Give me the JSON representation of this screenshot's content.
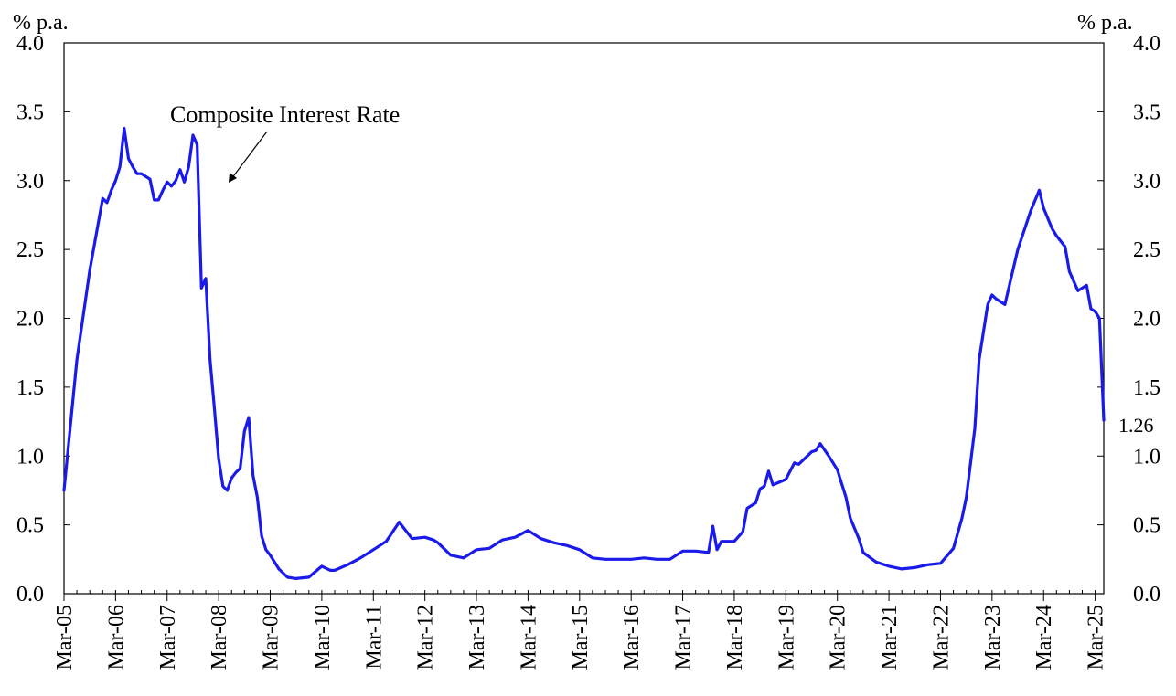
{
  "chart_data": {
    "type": "line",
    "title": "",
    "unit_left": "% p.a.",
    "unit_right": "% p.a.",
    "ylim": [
      0,
      4
    ],
    "yticks": [
      "0.0",
      "0.5",
      "1.0",
      "1.5",
      "2.0",
      "2.5",
      "3.0",
      "3.5",
      "4.0"
    ],
    "xticks": [
      "Mar-05",
      "Mar-06",
      "Mar-07",
      "Mar-08",
      "Mar-09",
      "Mar-10",
      "Mar-11",
      "Mar-12",
      "Mar-13",
      "Mar-14",
      "Mar-15",
      "Mar-16",
      "Mar-17",
      "Mar-18",
      "Mar-19",
      "Mar-20",
      "Mar-21",
      "Mar-22",
      "Mar-23",
      "Mar-24",
      "Mar-25"
    ],
    "grid": false,
    "annotation": "Composite Interest Rate",
    "last_value_label": "1.26",
    "line_color": "#1a1aeb",
    "series": [
      {
        "x": [
          "2005-03",
          "2005-06",
          "2005-09",
          "2005-12",
          "2006-01",
          "2006-02",
          "2006-03",
          "2006-04",
          "2006-05",
          "2006-06",
          "2006-07",
          "2006-08",
          "2006-09",
          "2006-10",
          "2006-11",
          "2006-12",
          "2007-01",
          "2007-02",
          "2007-03",
          "2007-04",
          "2007-05",
          "2007-06",
          "2007-07",
          "2007-08",
          "2007-09",
          "2007-10",
          "2007-11",
          "2007-12",
          "2008-01",
          "2008-02",
          "2008-03",
          "2008-04",
          "2008-05",
          "2008-06",
          "2008-07",
          "2008-08",
          "2008-09",
          "2008-10",
          "2008-11",
          "2008-12",
          "2009-01",
          "2009-02",
          "2009-03",
          "2009-05",
          "2009-07",
          "2009-09",
          "2009-12",
          "2010-03",
          "2010-05",
          "2010-06",
          "2010-09",
          "2010-12",
          "2011-03",
          "2011-06",
          "2011-09",
          "2011-12",
          "2012-03",
          "2012-05",
          "2012-06",
          "2012-09",
          "2012-12",
          "2013-03",
          "2013-06",
          "2013-09",
          "2013-12",
          "2014-03",
          "2014-06",
          "2014-09",
          "2014-12",
          "2015-03",
          "2015-06",
          "2015-09",
          "2015-12",
          "2016-03",
          "2016-06",
          "2016-09",
          "2016-12",
          "2017-03",
          "2017-06",
          "2017-09",
          "2017-10",
          "2017-11",
          "2017-12",
          "2018-03",
          "2018-05",
          "2018-06",
          "2018-08",
          "2018-09",
          "2018-10",
          "2018-11",
          "2018-12",
          "2019-03",
          "2019-05",
          "2019-06",
          "2019-08",
          "2019-09",
          "2019-10",
          "2019-11",
          "2020-01",
          "2020-03",
          "2020-05",
          "2020-06",
          "2020-08",
          "2020-09",
          "2020-12",
          "2021-03",
          "2021-06",
          "2021-09",
          "2021-12",
          "2022-03",
          "2022-06",
          "2022-08",
          "2022-09",
          "2022-11",
          "2022-12",
          "2023-02",
          "2023-03",
          "2023-04",
          "2023-06",
          "2023-09",
          "2023-12",
          "2024-02",
          "2024-03",
          "2024-05",
          "2024-06",
          "2024-08",
          "2024-09",
          "2024-11",
          "2025-01",
          "2025-02",
          "2025-03",
          "2025-04",
          "2025-05"
        ],
        "values": [
          0.75,
          1.7,
          2.35,
          2.87,
          2.84,
          2.93,
          3.0,
          3.1,
          3.38,
          3.16,
          3.1,
          3.05,
          3.05,
          3.03,
          3.01,
          2.86,
          2.86,
          2.93,
          2.99,
          2.96,
          3.0,
          3.08,
          2.99,
          3.1,
          3.33,
          3.26,
          2.22,
          2.29,
          1.7,
          1.35,
          0.98,
          0.78,
          0.75,
          0.84,
          0.88,
          0.91,
          1.18,
          1.28,
          0.86,
          0.7,
          0.42,
          0.32,
          0.28,
          0.18,
          0.12,
          0.11,
          0.12,
          0.2,
          0.17,
          0.17,
          0.21,
          0.26,
          0.32,
          0.38,
          0.52,
          0.4,
          0.41,
          0.39,
          0.37,
          0.28,
          0.26,
          0.32,
          0.33,
          0.39,
          0.41,
          0.46,
          0.4,
          0.37,
          0.35,
          0.32,
          0.26,
          0.25,
          0.25,
          0.25,
          0.26,
          0.25,
          0.25,
          0.31,
          0.31,
          0.3,
          0.49,
          0.32,
          0.38,
          0.38,
          0.45,
          0.62,
          0.66,
          0.76,
          0.78,
          0.89,
          0.79,
          0.83,
          0.95,
          0.94,
          1.0,
          1.03,
          1.04,
          1.09,
          1.0,
          0.9,
          0.7,
          0.55,
          0.4,
          0.3,
          0.23,
          0.2,
          0.18,
          0.19,
          0.21,
          0.22,
          0.33,
          0.55,
          0.7,
          1.2,
          1.7,
          2.1,
          2.17,
          2.14,
          2.1,
          2.5,
          2.78,
          2.93,
          2.8,
          2.65,
          2.6,
          2.52,
          2.34,
          2.2,
          2.24,
          2.07,
          2.05,
          2.0,
          1.26
        ]
      }
    ]
  }
}
